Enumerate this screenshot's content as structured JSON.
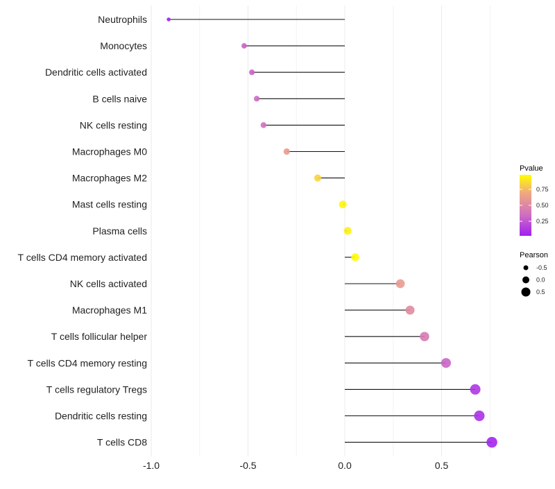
{
  "chart_data": {
    "type": "lollipop",
    "title": "",
    "xlabel": "",
    "ylabel": "",
    "xlim": [
      -1.0,
      0.8
    ],
    "x_ticks": [
      -1.0,
      -0.5,
      0.0,
      0.5
    ],
    "x_tick_labels": [
      "-1.0",
      "-0.5",
      "0.0",
      "0.5"
    ],
    "grid": true,
    "categories": [
      "Neutrophils",
      "Monocytes",
      "Dendritic cells activated",
      "B cells naive",
      "NK cells resting",
      "Macrophages M0",
      "Macrophages M2",
      "Mast cells resting",
      "Plasma cells",
      "T cells CD4 memory activated",
      "NK cells activated",
      "Macrophages M1",
      "T cells follicular helper",
      "T cells CD4 memory resting",
      "T cells regulatory  Tregs ",
      "Dendritic cells resting",
      "T cells CD8"
    ],
    "pearson": [
      -0.91,
      -0.52,
      -0.48,
      -0.455,
      -0.42,
      -0.3,
      -0.14,
      -0.01,
      0.015,
      0.054,
      0.287,
      0.337,
      0.412,
      0.523,
      0.674,
      0.695,
      0.76
    ],
    "pvalue": [
      0.0,
      0.3,
      0.3,
      0.33,
      0.36,
      0.62,
      0.85,
      0.97,
      0.95,
      0.99,
      0.62,
      0.52,
      0.42,
      0.3,
      0.1,
      0.08,
      0.02
    ],
    "legend_color": {
      "title": "Pvalue",
      "ticks": [
        0.25,
        0.5,
        0.75
      ],
      "tick_labels": [
        "0.25",
        "0.50",
        "0.75"
      ],
      "low_color": "#a020f0",
      "high_color": "#ffff00",
      "placement": "right"
    },
    "legend_size": {
      "title": "Pearson",
      "values": [
        -0.5,
        0.0,
        0.5
      ],
      "labels": [
        "-0.5",
        "0.0",
        "0.5"
      ],
      "placement": "right"
    }
  }
}
